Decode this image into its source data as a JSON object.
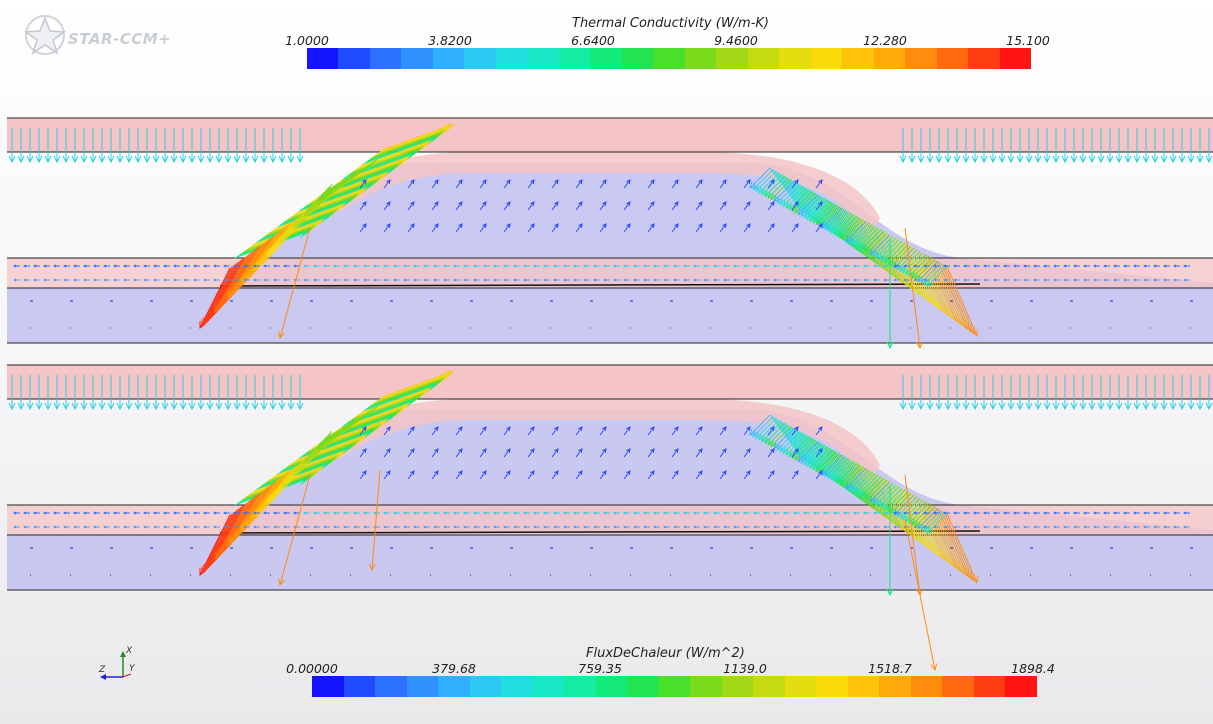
{
  "app": {
    "logo_text": "STAR-CCM+"
  },
  "legend_top": {
    "title": "Thermal Conductivity (W/m-K)",
    "ticks": [
      "1.0000",
      "3.8200",
      "6.6400",
      "9.4600",
      "12.280",
      "15.100"
    ],
    "colors": [
      "#1414ff",
      "#1e4cff",
      "#2a72ff",
      "#2f92ff",
      "#2fb0ff",
      "#2ccaf2",
      "#22dde0",
      "#18e8c6",
      "#14eba4",
      "#14ea7c",
      "#20e550",
      "#4ae02a",
      "#7ada1c",
      "#a2d816",
      "#c6da12",
      "#e4de10",
      "#fada0a",
      "#ffc40a",
      "#ffa90a",
      "#ff8c0c",
      "#ff6a10",
      "#ff3c12",
      "#ff1414"
    ]
  },
  "legend_bottom": {
    "title": "FluxDeChaleur (W/m^2)",
    "ticks": [
      "0.00000",
      "379.68",
      "759.35",
      "1139.0",
      "1518.7",
      "1898.4"
    ],
    "colors": [
      "#1414ff",
      "#1e4cff",
      "#2a72ff",
      "#2f92ff",
      "#2fb0ff",
      "#2ccaf2",
      "#22dde0",
      "#18e8c6",
      "#14eba4",
      "#14ea7c",
      "#20e550",
      "#4ae02a",
      "#7ada1c",
      "#a2d816",
      "#c6da12",
      "#e4de10",
      "#fada0a",
      "#ffc40a",
      "#ffa90a",
      "#ff8c0c",
      "#ff6a10",
      "#ff3c12",
      "#ff1414"
    ]
  },
  "triad": {
    "axis_x": "X",
    "axis_y": "Y",
    "axis_z": "Z"
  },
  "colors": {
    "pink_layer": "#f5c4c6",
    "blue_layer": "#c4c3f0",
    "outline": "#222222"
  }
}
